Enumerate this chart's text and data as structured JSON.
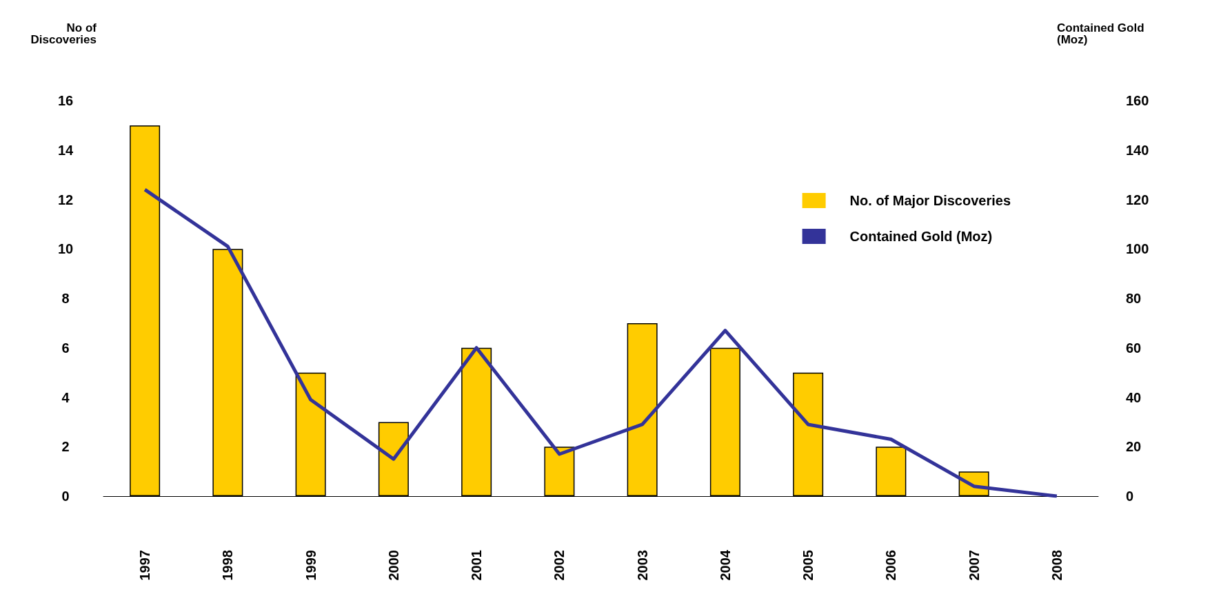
{
  "chart_data": {
    "type": "bar",
    "categories": [
      "1997",
      "1998",
      "1999",
      "2000",
      "2001",
      "2002",
      "2003",
      "2004",
      "2005",
      "2006",
      "2007",
      "2008"
    ],
    "ylabel": "No of\nDiscoveries",
    "y2label": "Contained Gold\n(Moz)",
    "series": [
      {
        "name": "No. of Major Discoveries",
        "color": "#ffcc00",
        "values": [
          15,
          10,
          5,
          3,
          6,
          2,
          7,
          6,
          5,
          2,
          1,
          null
        ]
      },
      {
        "name": "Contained Gold (Moz)",
        "type": "line",
        "axis": "y2",
        "color": "#333399",
        "marker": "none",
        "values": [
          124,
          101,
          39,
          15,
          60,
          17,
          29,
          67,
          29,
          23,
          4,
          0
        ]
      }
    ],
    "ylim": [
      0,
      16
    ],
    "yticks": [
      0,
      2,
      4,
      6,
      8,
      10,
      12,
      14,
      16
    ],
    "y2lim": [
      0,
      160
    ],
    "y2ticks": [
      0,
      20,
      40,
      60,
      80,
      100,
      120,
      140,
      160
    ],
    "grid": false,
    "legend": "top right"
  }
}
